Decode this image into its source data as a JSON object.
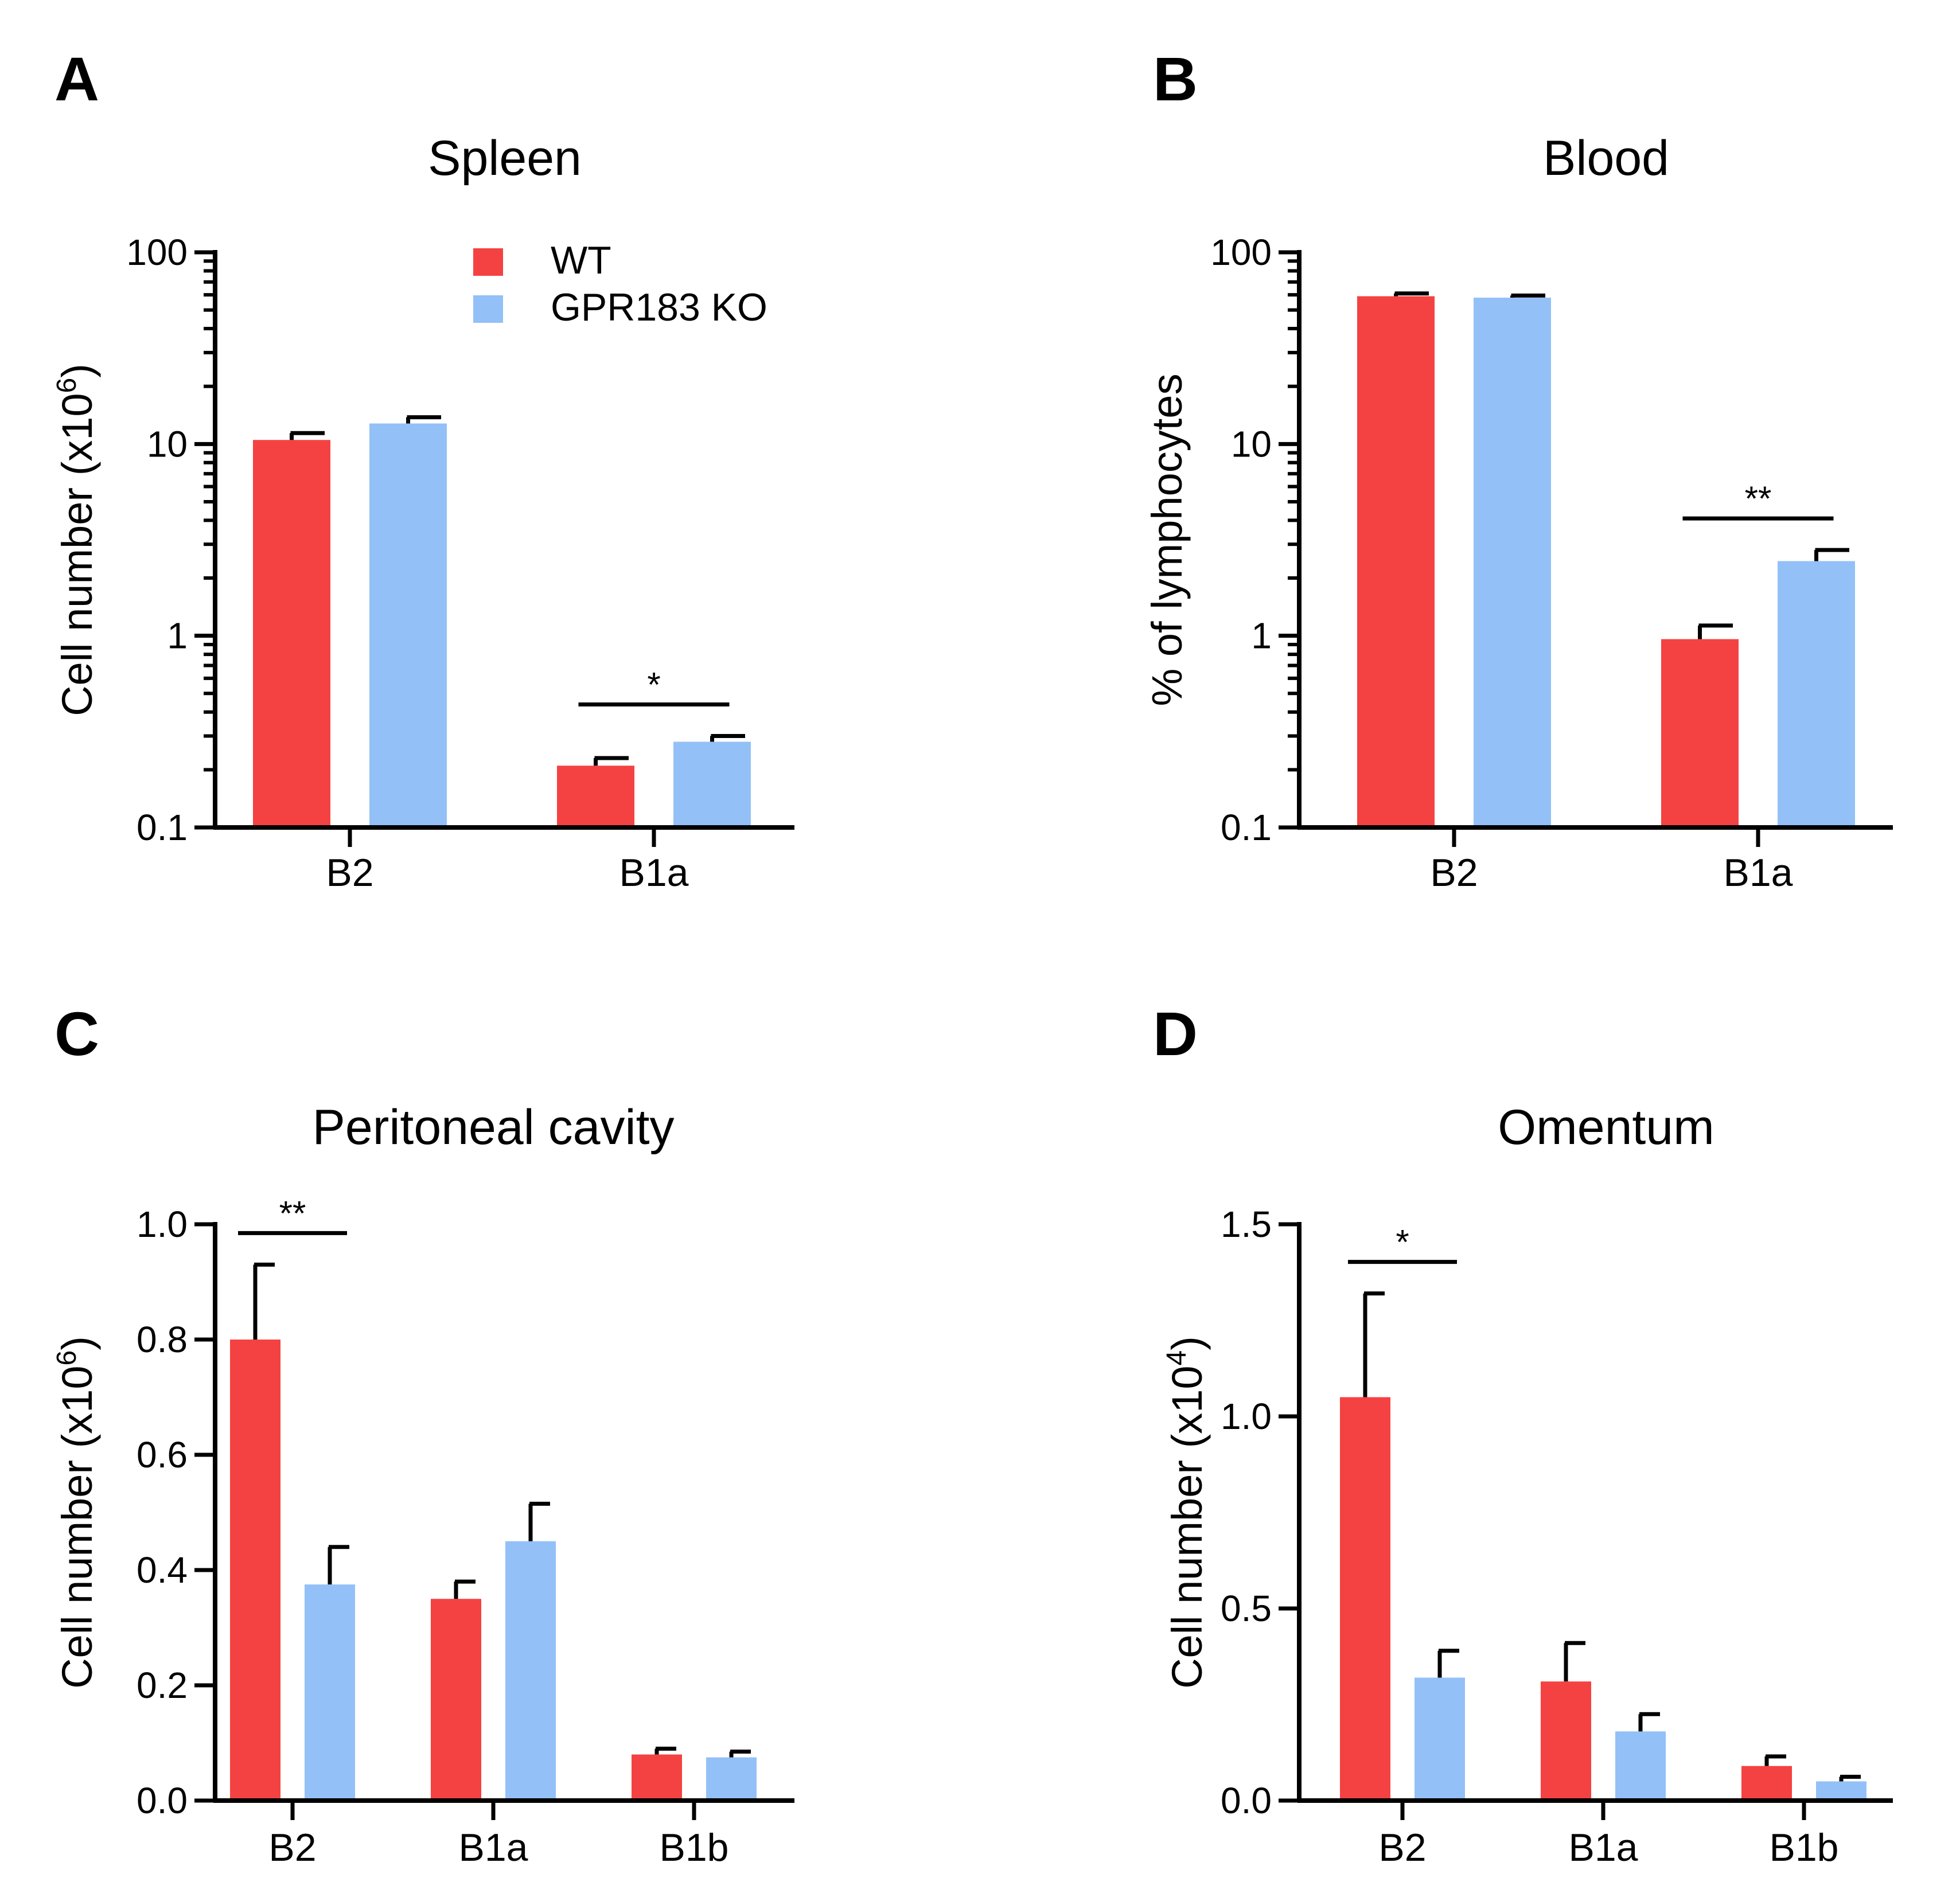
{
  "legend": {
    "items": [
      {
        "label": "WT",
        "color": "#f44242"
      },
      {
        "label": "GPR183 KO",
        "color": "#93c0f7"
      }
    ]
  },
  "chart_data": [
    {
      "panel": "A",
      "type": "bar",
      "title": "Spleen",
      "ylabel": "Cell number (x10",
      "ylabel_exp": "6",
      "ylabel_close": ")",
      "yscale": "log",
      "ylim": [
        0.1,
        100
      ],
      "yticks": [
        "0.1",
        "1",
        "10",
        "100"
      ],
      "categories": [
        "B2",
        "B1a"
      ],
      "series": [
        {
          "name": "WT",
          "color": "#f44242",
          "values": [
            10.5,
            0.21
          ],
          "errors": [
            0.9,
            0.02
          ]
        },
        {
          "name": "GPR183 KO",
          "color": "#93c0f7",
          "values": [
            12.8,
            0.28
          ],
          "errors": [
            1.0,
            0.02
          ]
        }
      ],
      "significance": [
        {
          "category": "B1a",
          "label": "*"
        }
      ]
    },
    {
      "panel": "B",
      "type": "bar",
      "title": "Blood",
      "ylabel": "% of lymphocytes",
      "yscale": "log",
      "ylim": [
        0.1,
        100
      ],
      "yticks": [
        "0.1",
        "1",
        "10",
        "100"
      ],
      "categories": [
        "B2",
        "B1a"
      ],
      "series": [
        {
          "name": "WT",
          "color": "#f44242",
          "values": [
            59,
            0.96
          ],
          "errors": [
            2,
            0.17
          ]
        },
        {
          "name": "GPR183 KO",
          "color": "#93c0f7",
          "values": [
            58,
            2.45
          ],
          "errors": [
            1.5,
            0.35
          ]
        }
      ],
      "significance": [
        {
          "category": "B1a",
          "label": "**"
        }
      ]
    },
    {
      "panel": "C",
      "type": "bar",
      "title": "Peritoneal cavity",
      "ylabel": "Cell number (x10",
      "ylabel_exp": "6",
      "ylabel_close": ")",
      "yscale": "linear",
      "ylim": [
        0,
        1.0
      ],
      "yticks": [
        "0.0",
        "0.2",
        "0.4",
        "0.6",
        "0.8",
        "1.0"
      ],
      "categories": [
        "B2",
        "B1a",
        "B1b"
      ],
      "series": [
        {
          "name": "WT",
          "color": "#f44242",
          "values": [
            0.8,
            0.35,
            0.08
          ],
          "errors": [
            0.13,
            0.03,
            0.01
          ]
        },
        {
          "name": "GPR183 KO",
          "color": "#93c0f7",
          "values": [
            0.375,
            0.45,
            0.075
          ],
          "errors": [
            0.065,
            0.065,
            0.01
          ]
        }
      ],
      "significance": [
        {
          "category": "B2",
          "label": "**"
        }
      ]
    },
    {
      "panel": "D",
      "type": "bar",
      "title": "Omentum",
      "ylabel": "Cell number (x10",
      "ylabel_exp": "4",
      "ylabel_close": ")",
      "yscale": "linear",
      "ylim": [
        0,
        1.5
      ],
      "yticks": [
        "0.0",
        "0.5",
        "1.0",
        "1.5"
      ],
      "categories": [
        "B2",
        "B1a",
        "B1b"
      ],
      "series": [
        {
          "name": "WT",
          "color": "#f44242",
          "values": [
            1.05,
            0.31,
            0.09
          ],
          "errors": [
            0.27,
            0.1,
            0.025
          ]
        },
        {
          "name": "GPR183 KO",
          "color": "#93c0f7",
          "values": [
            0.32,
            0.18,
            0.05
          ],
          "errors": [
            0.07,
            0.045,
            0.012
          ]
        }
      ],
      "significance": [
        {
          "category": "B2",
          "label": "*"
        }
      ]
    }
  ]
}
